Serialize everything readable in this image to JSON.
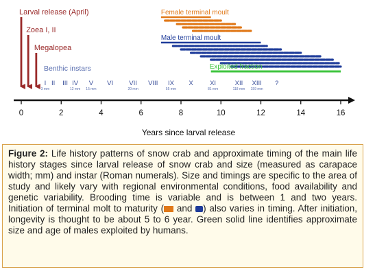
{
  "chart_data": {
    "type": "timeline",
    "xlabel": "Years since larval release",
    "xlim": [
      0,
      16
    ],
    "xticks": [
      0,
      2,
      4,
      6,
      8,
      10,
      12,
      14,
      16
    ],
    "early_stages": [
      {
        "label": "Larval release (April)",
        "year": 0,
        "color": "#9a2a2a"
      },
      {
        "label": "Zoea I, II",
        "year": 0.35,
        "color": "#9a2a2a"
      },
      {
        "label": "Megalopea",
        "year": 0.75,
        "color": "#9a2a2a"
      }
    ],
    "benthic_label": "Benthic instars",
    "instars": [
      {
        "numeral": "I",
        "year": 1.2,
        "size": "3 mm"
      },
      {
        "numeral": "II",
        "year": 1.6,
        "size": ""
      },
      {
        "numeral": "III",
        "year": 2.2,
        "size": ""
      },
      {
        "numeral": "IV",
        "year": 2.7,
        "size": "12 mm"
      },
      {
        "numeral": "V",
        "year": 3.5,
        "size": "15 mm"
      },
      {
        "numeral": "VI",
        "year": 4.45,
        "size": ""
      },
      {
        "numeral": "VII",
        "year": 5.6,
        "size": "20 mm"
      },
      {
        "numeral": "VIII",
        "year": 6.6,
        "size": ""
      },
      {
        "numeral": "IX",
        "year": 7.5,
        "size": "55 mm"
      },
      {
        "numeral": "X",
        "year": 8.5,
        "size": ""
      },
      {
        "numeral": "XI",
        "year": 9.6,
        "size": "81 mm"
      },
      {
        "numeral": "XII",
        "year": 10.9,
        "size": "118 mm"
      },
      {
        "numeral": "XIII",
        "year": 11.8,
        "size": "159 mm"
      },
      {
        "numeral": "?",
        "year": 12.8,
        "size": ""
      }
    ],
    "female_moult": {
      "label": "Female terminal moult",
      "color": "#e07818",
      "bar": [
        7,
        9.5
      ],
      "rows": [
        [
          7.2,
          10.0
        ],
        [
          7.8,
          10.7
        ],
        [
          8.1,
          11.0
        ],
        [
          8.6,
          11.5
        ]
      ]
    },
    "male_moult": {
      "label": "Male terminal moult",
      "color": "#1f3c9a",
      "bar": [
        7,
        12
      ],
      "rows": [
        [
          7.6,
          12.3
        ],
        [
          8.0,
          13.0
        ],
        [
          8.5,
          14.0
        ],
        [
          9.0,
          15.0
        ],
        [
          9.5,
          15.6
        ],
        [
          10.0,
          15.9
        ],
        [
          10.5,
          16.0
        ]
      ]
    },
    "exploited": {
      "label": "Exploited fraction",
      "color": "#3fc43f",
      "range": [
        9.5,
        16
      ]
    }
  },
  "caption": {
    "figure_label": "Figure 2:",
    "part1": " Life history patterns of snow crab and approximate timing of the main life history stages since larval release of snow crab and size (measured as carapace width; mm) and instar (Roman numerals). Size and timings are specific to the area of study and likely vary with regional environmental conditions, food availability and genetic variability. Brooding time is variable and is between 1 and two years. Initiation of terminal molt to maturity (",
    "and_word": " and ",
    "part2": ") also varies in timing. After initiation, longevity is thought to be about 5 to 6 year. Green solid line identifies approximate size and age of males exploited by humans."
  }
}
